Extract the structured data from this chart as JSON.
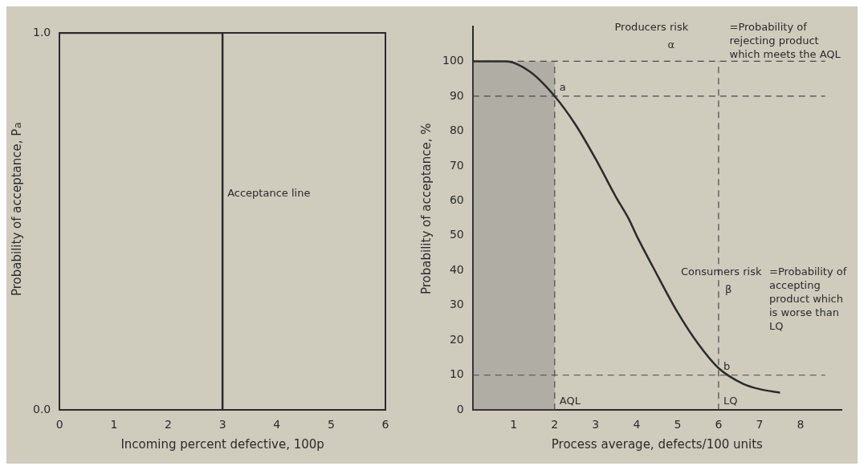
{
  "chart_data": [
    {
      "type": "line",
      "xlabel": "Incoming percent defective, 100p",
      "ylabel": "Probability of acceptance, P$_{a}$",
      "xlim": [
        0,
        6
      ],
      "ylim": [
        0,
        1
      ],
      "xticks": [
        0,
        1,
        2,
        3,
        4,
        5,
        6
      ],
      "yticks": [
        {
          "value": 0,
          "label": "0.0"
        },
        {
          "value": 1,
          "label": "1.0"
        }
      ],
      "grid": false,
      "legend": false,
      "marker": "none",
      "line_style": "solid",
      "series": [
        {
          "color": "#2b2b2b",
          "x": [
            0,
            3,
            3,
            6
          ],
          "values": [
            1,
            1,
            0,
            0
          ]
        }
      ],
      "annotations": [
        {
          "text": "Acceptance line",
          "x": 3,
          "y": 0.55
        }
      ]
    },
    {
      "type": "line",
      "xlabel": "Process average, defects/100 units",
      "ylabel": "Probability of acceptance, %",
      "xlim": [
        0,
        9
      ],
      "ylim": [
        0,
        110
      ],
      "xticks": [
        1,
        2,
        3,
        4,
        5,
        6,
        7,
        8
      ],
      "yticks": [
        0,
        10,
        20,
        30,
        40,
        50,
        60,
        70,
        80,
        90,
        100
      ],
      "grid": false,
      "legend": false,
      "marker": "none",
      "line_style": "solid",
      "series": [
        {
          "color": "#2b2b2b",
          "x": [
            0,
            0.8,
            1.4,
            2,
            2.5,
            3,
            3.5,
            3.8,
            4,
            4.4,
            5,
            5.5,
            6,
            6.6,
            7,
            7.5
          ],
          "values": [
            100,
            100,
            97,
            90,
            82,
            72,
            61,
            55,
            50,
            41,
            28,
            19,
            12,
            7.5,
            6,
            5
          ]
        }
      ],
      "bands": [
        {
          "axis": "x",
          "from": 0,
          "to": 2,
          "color": "#6b6b6b"
        }
      ],
      "ref_lines": [
        {
          "axis": "y",
          "value": 100,
          "line_style": "dashed",
          "color": "#4a4a4a"
        },
        {
          "axis": "y",
          "value": 90,
          "line_style": "dashed",
          "color": "#4a4a4a"
        },
        {
          "axis": "y",
          "value": 10,
          "line_style": "dashed",
          "color": "#4a4a4a"
        },
        {
          "axis": "x",
          "value": 2,
          "line_style": "dashed",
          "color": "#4a4a4a"
        },
        {
          "axis": "x",
          "value": 6,
          "line_style": "dashed",
          "color": "#4a4a4a"
        }
      ],
      "annotations": [
        {
          "text": "a",
          "x": 2,
          "y": 90
        },
        {
          "text": "b",
          "x": 6,
          "y": 10
        },
        {
          "text": "AQL",
          "x": 2,
          "y": 0
        },
        {
          "text": "LQ",
          "x": 6,
          "y": 0
        },
        "Producers risk",
        "α",
        "=Probability of rejecting product which meets the AQL",
        "Consumers risk",
        "β",
        "=Probability of accepting product which is worse than LQ"
      ]
    }
  ]
}
